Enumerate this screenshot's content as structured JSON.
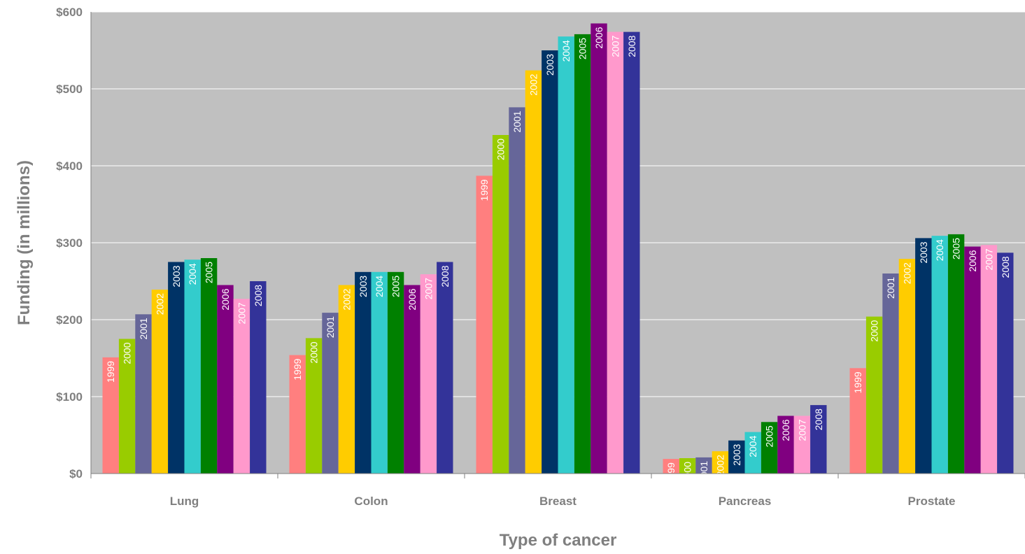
{
  "chart_data": {
    "type": "bar",
    "title": "",
    "xlabel": "Type of cancer",
    "ylabel": "Funding (in millions)",
    "ylim": [
      0,
      600
    ],
    "yticks": [
      0,
      100,
      200,
      300,
      400,
      500,
      600
    ],
    "ytick_labels": [
      "$0",
      "$100",
      "$200",
      "$300",
      "$400",
      "$500",
      "$600"
    ],
    "grid": true,
    "legend": "none",
    "categories": [
      "Lung",
      "Colon",
      "Breast",
      "Pancreas",
      "Prostate"
    ],
    "series": [
      {
        "name": "1999",
        "color": "#ff7f7f",
        "values": [
          151,
          154,
          387,
          19,
          137
        ]
      },
      {
        "name": "2000",
        "color": "#99cc00",
        "values": [
          175,
          176,
          440,
          20,
          204
        ]
      },
      {
        "name": "2001",
        "color": "#666699",
        "values": [
          207,
          209,
          476,
          21,
          260
        ]
      },
      {
        "name": "2002",
        "color": "#ffcc00",
        "values": [
          239,
          245,
          524,
          29,
          279
        ]
      },
      {
        "name": "2003",
        "color": "#003366",
        "values": [
          275,
          262,
          550,
          43,
          306
        ]
      },
      {
        "name": "2004",
        "color": "#33cccc",
        "values": [
          278,
          262,
          568,
          54,
          309
        ]
      },
      {
        "name": "2005",
        "color": "#008000",
        "values": [
          280,
          262,
          571,
          67,
          311
        ]
      },
      {
        "name": "2006",
        "color": "#800080",
        "values": [
          245,
          245,
          585,
          75,
          295
        ]
      },
      {
        "name": "2007",
        "color": "#ff99cc",
        "values": [
          227,
          259,
          574,
          75,
          297
        ]
      },
      {
        "name": "2008",
        "color": "#333399",
        "values": [
          250,
          275,
          574,
          89,
          287
        ]
      }
    ],
    "colors": {
      "plot_background": "#c0c0c0",
      "gridline": "#ffffff",
      "text": "#7f7f7f"
    }
  }
}
